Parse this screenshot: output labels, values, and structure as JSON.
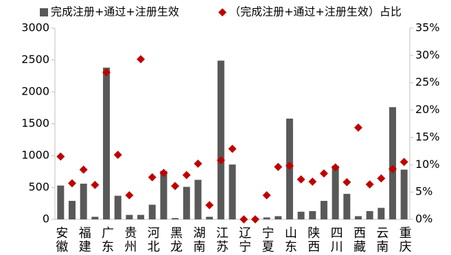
{
  "chart_data": {
    "type": "bar",
    "categories": [
      "安徽",
      null,
      "福建",
      null,
      "广东",
      null,
      "贵州",
      null,
      "河北",
      null,
      "黑龙",
      null,
      "湖南",
      null,
      "江苏",
      null,
      "辽宁",
      null,
      "宁夏",
      null,
      "山东",
      null,
      "陕西",
      null,
      "四川",
      null,
      "西藏",
      null,
      "云南",
      null,
      "重庆"
    ],
    "series": [
      {
        "name": "完成注册+通过+注册生效",
        "color": "#595959",
        "type": "bar",
        "values": [
          530,
          290,
          560,
          40,
          2380,
          370,
          70,
          70,
          230,
          760,
          20,
          510,
          620,
          40,
          2490,
          860,
          0,
          20,
          30,
          50,
          1580,
          120,
          130,
          290,
          840,
          400,
          50,
          130,
          180,
          1760,
          780
        ]
      },
      {
        "name": "（完成注册+通过+注册生效）占比",
        "color": "#c00000",
        "type": "scatter",
        "axis": "y2",
        "values": [
          11.5,
          6.6,
          9.1,
          6.3,
          26.9,
          11.8,
          4.4,
          29.3,
          7.7,
          8.5,
          6.1,
          8.1,
          10.2,
          2.6,
          10.8,
          12.9,
          0,
          0,
          4.4,
          9.6,
          9.8,
          7.3,
          6.9,
          8.4,
          9.5,
          6.8,
          16.8,
          6.4,
          7.5,
          9.2,
          10.5
        ]
      }
    ],
    "ylim": [
      0,
      3000
    ],
    "yticks": [
      0,
      500,
      1000,
      1500,
      2000,
      2500,
      3000
    ],
    "y2lim": [
      0,
      35
    ],
    "y2ticks": [
      {
        "value": 0,
        "label": "0%"
      },
      {
        "value": 5,
        "label": "5%"
      },
      {
        "value": 10,
        "label": "10%"
      },
      {
        "value": 15,
        "label": "15%"
      },
      {
        "value": 20,
        "label": "20%"
      },
      {
        "value": 25,
        "label": "25%"
      },
      {
        "value": 30,
        "label": "30%"
      },
      {
        "value": 35,
        "label": "35%"
      }
    ],
    "grid": false,
    "legend": "top"
  }
}
